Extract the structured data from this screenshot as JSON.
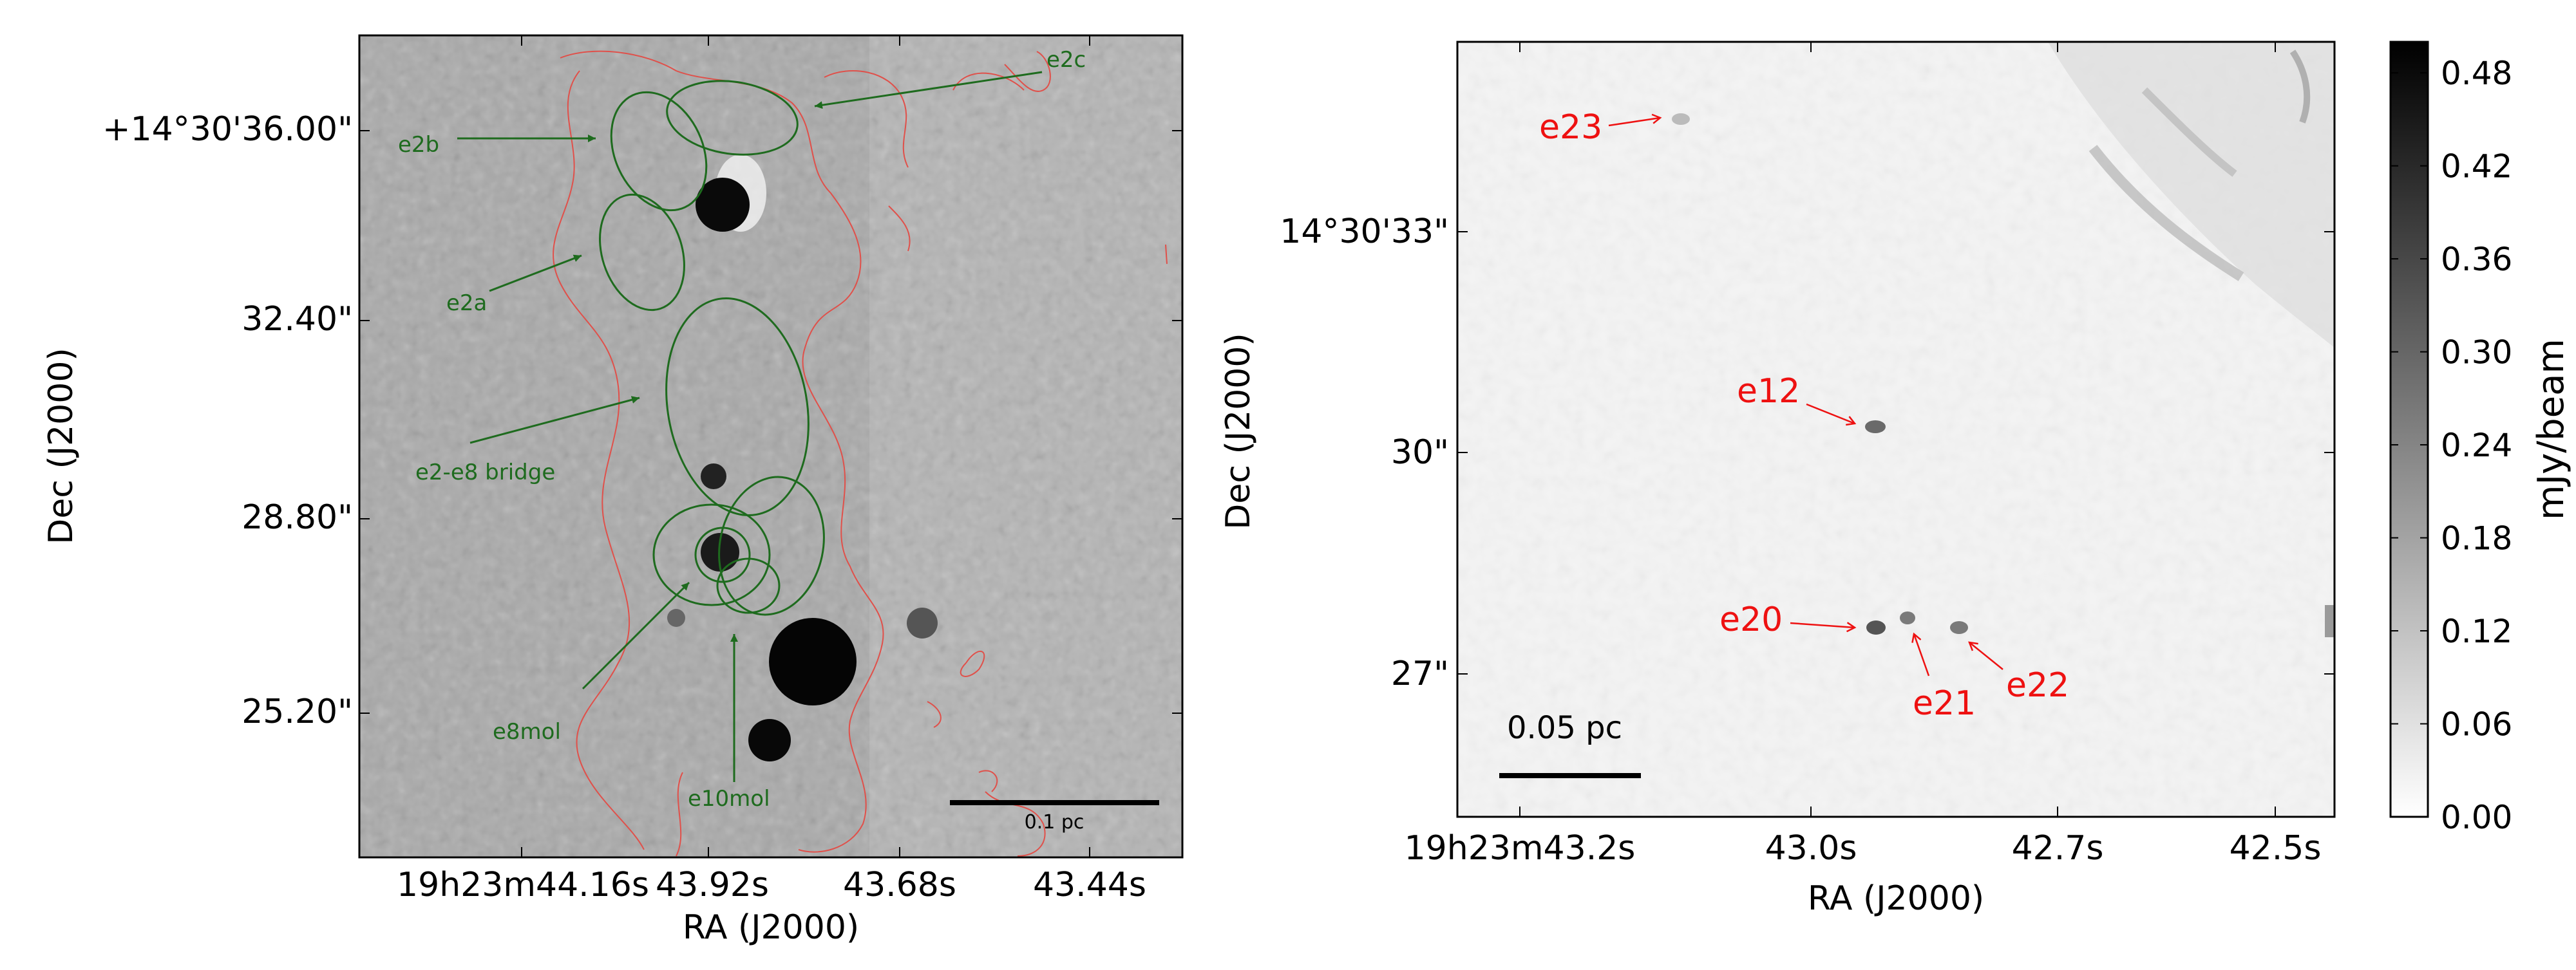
{
  "left_panel": {
    "dec_ticks": [
      "+14°30'36.00\"",
      "32.40\"",
      "28.80\"",
      "25.20\""
    ],
    "ra_ticks": [
      "19h23m44.16s",
      "43.92s",
      "43.68s",
      "43.44s"
    ],
    "xlabel": "RA (J2000)",
    "ylabel": "Dec (J2000)",
    "scalebar": "0.1 pc",
    "labels": {
      "e2b": "e2b",
      "e2c": "e2c",
      "e2a": "e2a",
      "bridge": "e2-e8 bridge",
      "e8mol": "e8mol",
      "e10mol": "e10mol"
    },
    "label_color": "#1e6b1e",
    "contour_color": "#e0504a"
  },
  "right_panel": {
    "dec_ticks": [
      "14°30'33\"",
      "30\"",
      "27\""
    ],
    "ra_ticks": [
      "19h23m43.2s",
      "43.0s",
      "42.7s",
      "42.5s"
    ],
    "xlabel": "RA (J2000)",
    "ylabel": "Dec (J2000)",
    "scalebar": "0.05 pc",
    "labels": {
      "e23": "e23",
      "e12": "e12",
      "e20": "e20",
      "e21": "e21",
      "e22": "e22"
    },
    "label_color": "#ee1111"
  },
  "colorbar": {
    "label": "mJy/beam",
    "ticks": [
      "0.48",
      "0.42",
      "0.36",
      "0.30",
      "0.24",
      "0.18",
      "0.12",
      "0.06",
      "0.00"
    ],
    "range": [
      0.0,
      0.5
    ]
  }
}
